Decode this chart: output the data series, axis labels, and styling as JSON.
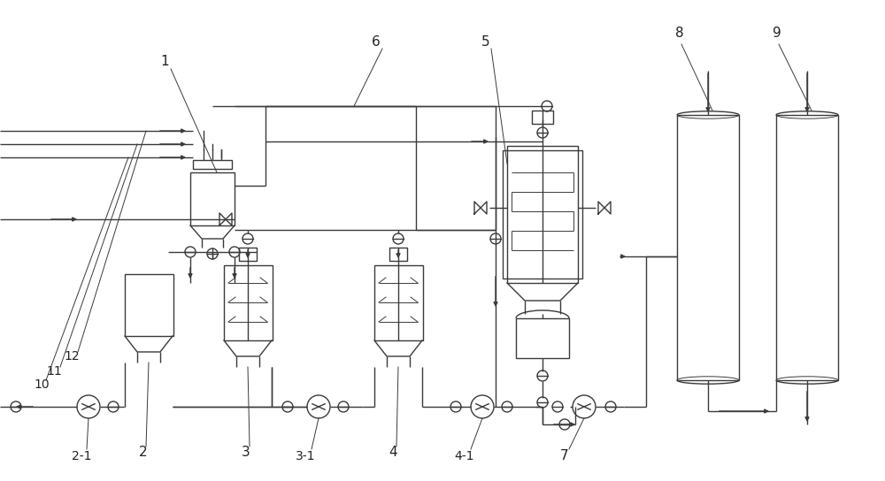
{
  "bg": "#ffffff",
  "lc": "#3a3a3a",
  "lw": 1.0,
  "lw_thin": 0.7,
  "fig_w": 10.0,
  "fig_h": 5.44,
  "xlim": [
    0,
    1000
  ],
  "ylim": [
    0,
    544
  ]
}
